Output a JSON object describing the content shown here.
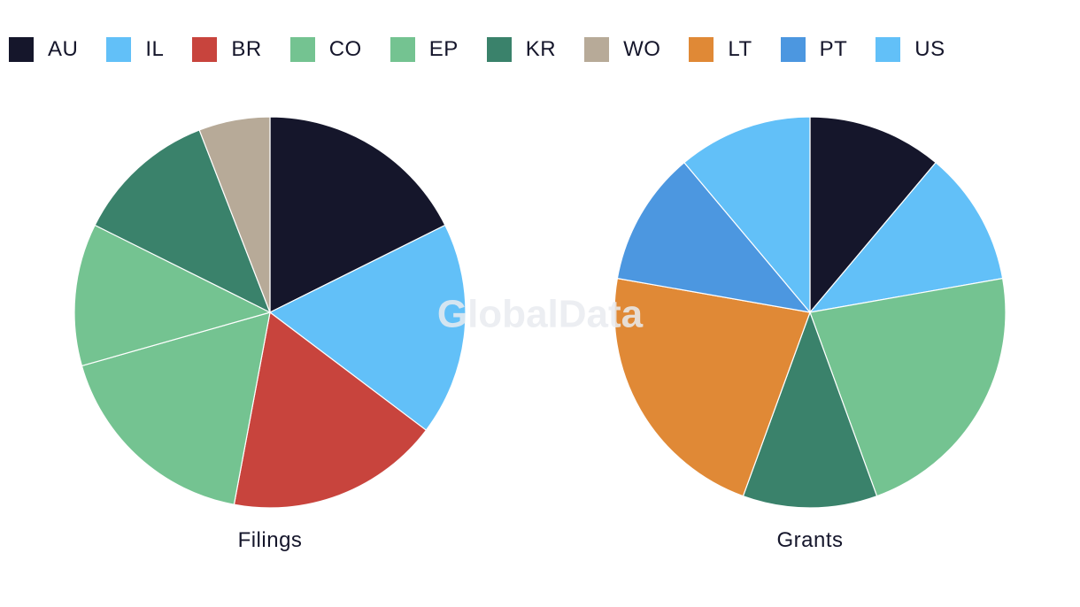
{
  "watermark": "GlobalData",
  "legend": [
    {
      "code": "AU",
      "color": "#15162b"
    },
    {
      "code": "IL",
      "color": "#62c0f8"
    },
    {
      "code": "BR",
      "color": "#c8443d"
    },
    {
      "code": "CO",
      "color": "#74c391"
    },
    {
      "code": "EP",
      "color": "#74c391"
    },
    {
      "code": "KR",
      "color": "#3a826b"
    },
    {
      "code": "WO",
      "color": "#b7aa98"
    },
    {
      "code": "LT",
      "color": "#e08936"
    },
    {
      "code": "PT",
      "color": "#4c97e0"
    },
    {
      "code": "US",
      "color": "#62c0f8"
    }
  ],
  "chart_data": [
    {
      "type": "pie",
      "title": "Filings",
      "slices": [
        {
          "label": "AU",
          "value": 3,
          "color": "#15162b"
        },
        {
          "label": "IL",
          "value": 3,
          "color": "#62c0f8"
        },
        {
          "label": "BR",
          "value": 3,
          "color": "#c8443d"
        },
        {
          "label": "CO",
          "value": 3,
          "color": "#74c391"
        },
        {
          "label": "EP",
          "value": 2,
          "color": "#74c391"
        },
        {
          "label": "KR",
          "value": 2,
          "color": "#3a826b"
        },
        {
          "label": "WO",
          "value": 1,
          "color": "#b7aa98"
        }
      ]
    },
    {
      "type": "pie",
      "title": "Grants",
      "slices": [
        {
          "label": "AU",
          "value": 1,
          "color": "#15162b"
        },
        {
          "label": "IL",
          "value": 1,
          "color": "#62c0f8"
        },
        {
          "label": "CO",
          "value": 2,
          "color": "#74c391"
        },
        {
          "label": "KR",
          "value": 1,
          "color": "#3a826b"
        },
        {
          "label": "LT",
          "value": 2,
          "color": "#e08936"
        },
        {
          "label": "PT",
          "value": 1,
          "color": "#4c97e0"
        },
        {
          "label": "US",
          "value": 1,
          "color": "#62c0f8"
        }
      ]
    }
  ]
}
